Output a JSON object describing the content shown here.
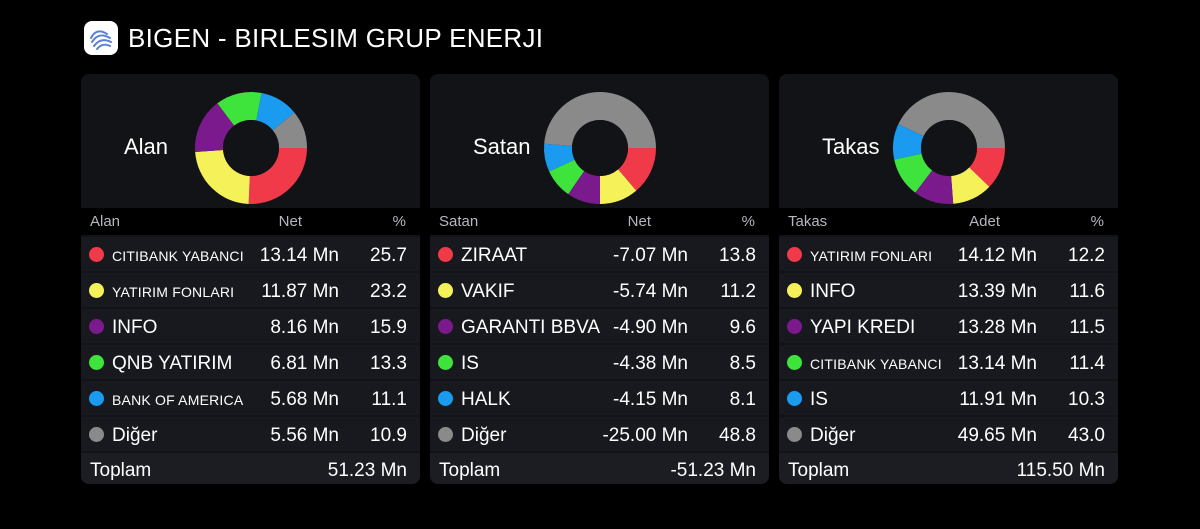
{
  "header": {
    "title": "BIGEN - BIRLESIM GRUP ENERJI",
    "logo_icon": "hand-logo-icon"
  },
  "colors": {
    "red": "#f03a4a",
    "yellow": "#f4f258",
    "purple": "#7b1a8c",
    "green": "#3ee43c",
    "blue": "#1b9bef",
    "gray": "#8a8a8a"
  },
  "chart_data": [
    {
      "type": "pie",
      "label": "Alan",
      "columns": [
        "Alan",
        "Net",
        "%"
      ],
      "rows": [
        {
          "name": "CITIBANK YABANCI",
          "value": "13.14 Mn",
          "pct": "25.7",
          "color": "#f03a4a",
          "small": true
        },
        {
          "name": "YATIRIM FONLARI",
          "value": "11.87 Mn",
          "pct": "23.2",
          "color": "#f4f258",
          "small": true
        },
        {
          "name": "INFO",
          "value": "8.16 Mn",
          "pct": "15.9",
          "color": "#7b1a8c",
          "small": false
        },
        {
          "name": "QNB YATIRIM",
          "value": "6.81 Mn",
          "pct": "13.3",
          "color": "#3ee43c",
          "small": false
        },
        {
          "name": "BANK OF AMERICA",
          "value": "5.68 Mn",
          "pct": "11.1",
          "color": "#1b9bef",
          "small": true
        },
        {
          "name": "Diğer",
          "value": "5.56 Mn",
          "pct": "10.9",
          "color": "#8a8a8a",
          "small": false
        }
      ],
      "total_label": "Toplam",
      "total_value": "51.23 Mn"
    },
    {
      "type": "pie",
      "label": "Satan",
      "columns": [
        "Satan",
        "Net",
        "%"
      ],
      "rows": [
        {
          "name": "ZIRAAT",
          "value": "-7.07 Mn",
          "pct": "13.8",
          "color": "#f03a4a",
          "small": false
        },
        {
          "name": "VAKIF",
          "value": "-5.74 Mn",
          "pct": "11.2",
          "color": "#f4f258",
          "small": false
        },
        {
          "name": "GARANTI BBVA",
          "value": "-4.90 Mn",
          "pct": "9.6",
          "color": "#7b1a8c",
          "small": false
        },
        {
          "name": "IS",
          "value": "-4.38 Mn",
          "pct": "8.5",
          "color": "#3ee43c",
          "small": false
        },
        {
          "name": "HALK",
          "value": "-4.15 Mn",
          "pct": "8.1",
          "color": "#1b9bef",
          "small": false
        },
        {
          "name": "Diğer",
          "value": "-25.00 Mn",
          "pct": "48.8",
          "color": "#8a8a8a",
          "small": false
        }
      ],
      "total_label": "Toplam",
      "total_value": "-51.23 Mn"
    },
    {
      "type": "pie",
      "label": "Takas",
      "columns": [
        "Takas",
        "Adet",
        "%"
      ],
      "rows": [
        {
          "name": "YATIRIM FONLARI",
          "value": "14.12 Mn",
          "pct": "12.2",
          "color": "#f03a4a",
          "small": true
        },
        {
          "name": "INFO",
          "value": "13.39 Mn",
          "pct": "11.6",
          "color": "#f4f258",
          "small": false
        },
        {
          "name": "YAPI KREDI",
          "value": "13.28 Mn",
          "pct": "11.5",
          "color": "#7b1a8c",
          "small": false
        },
        {
          "name": "CITIBANK YABANCI",
          "value": "13.14 Mn",
          "pct": "11.4",
          "color": "#3ee43c",
          "small": true
        },
        {
          "name": "IS",
          "value": "11.91 Mn",
          "pct": "10.3",
          "color": "#1b9bef",
          "small": false
        },
        {
          "name": "Diğer",
          "value": "49.65 Mn",
          "pct": "43.0",
          "color": "#8a8a8a",
          "small": false
        }
      ],
      "total_label": "Toplam",
      "total_value": "115.50 Mn"
    }
  ]
}
